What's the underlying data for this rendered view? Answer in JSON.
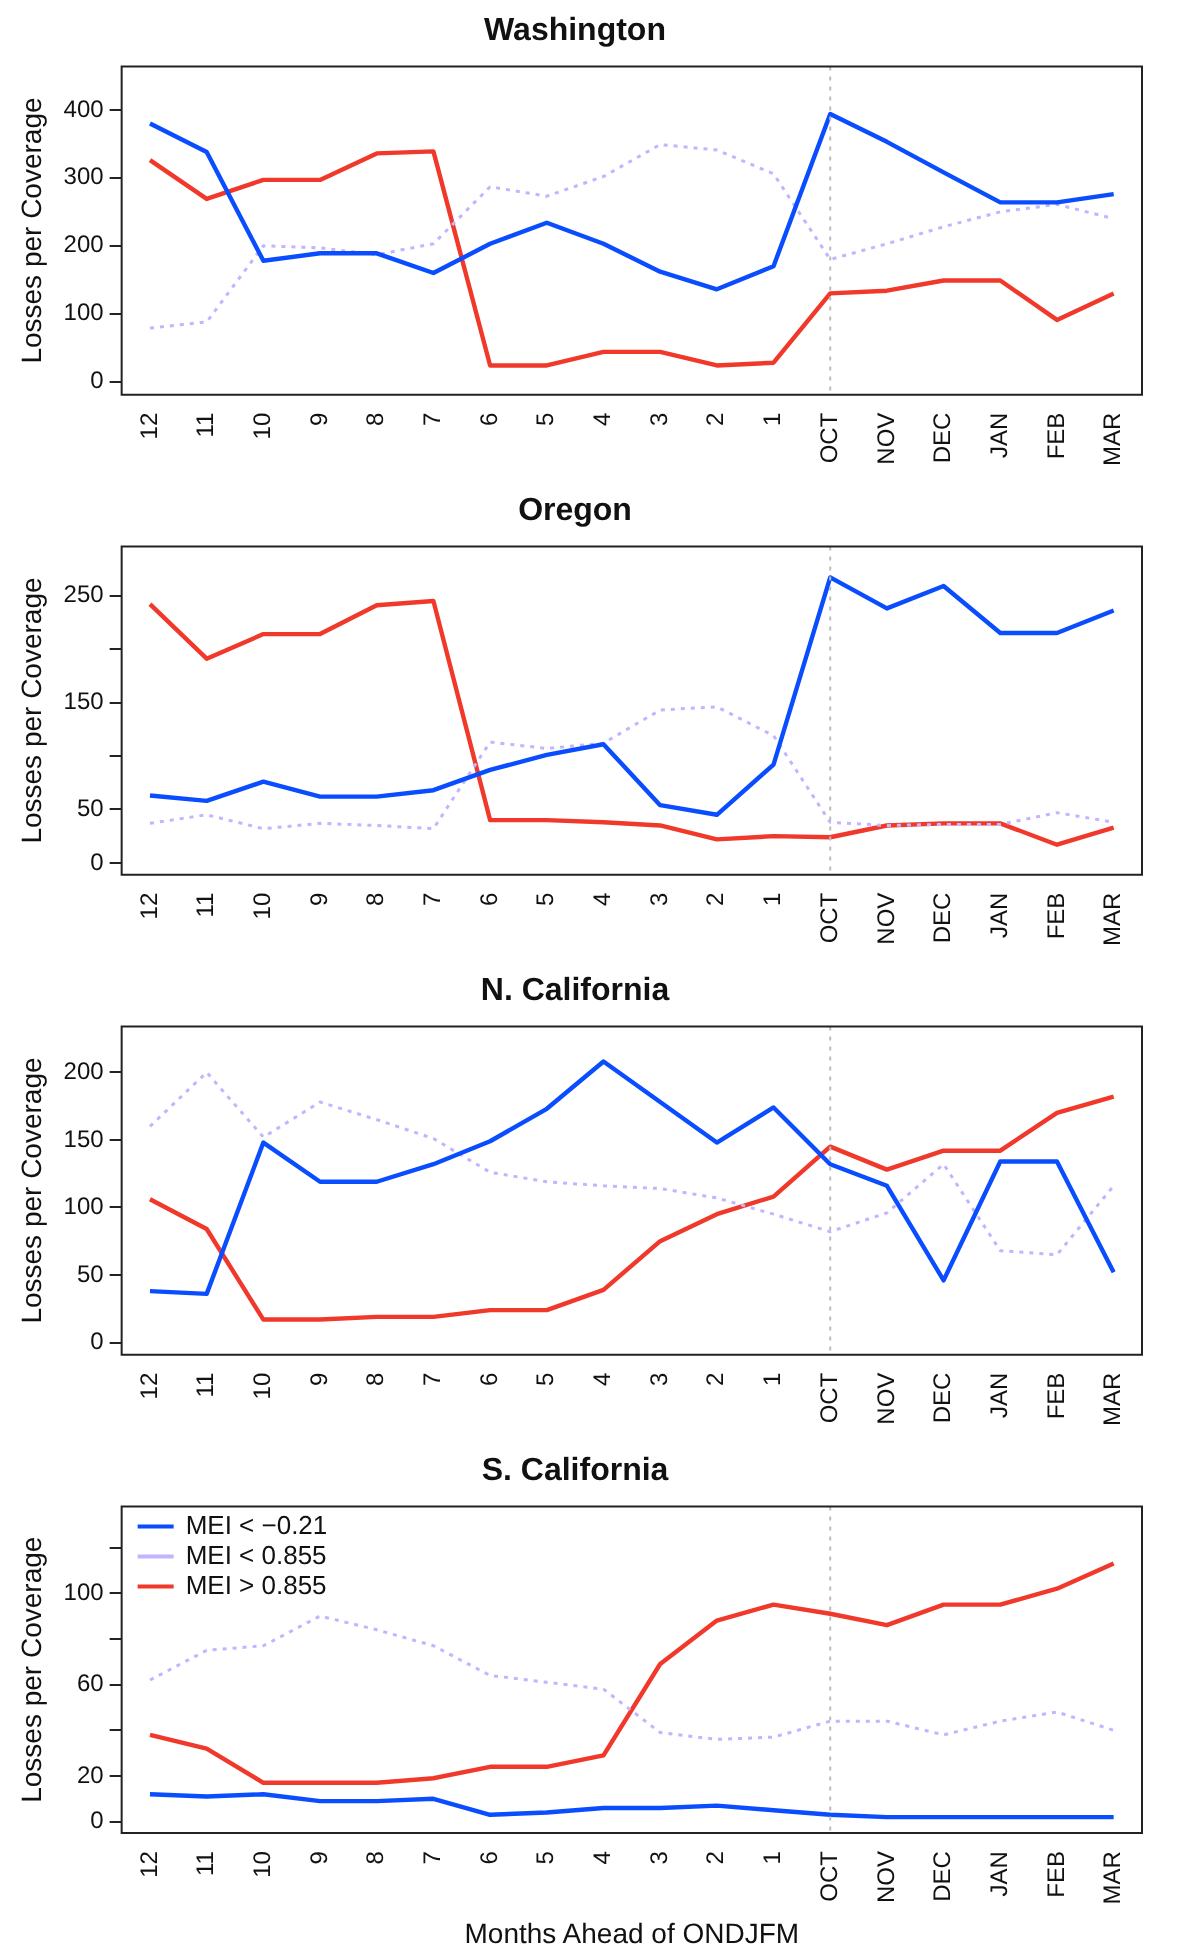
{
  "chart_data": [
    {
      "type": "line",
      "title": "Washington",
      "ylabel": "Losses per Coverage",
      "categories": [
        "12",
        "11",
        "10",
        "9",
        "8",
        "7",
        "6",
        "5",
        "4",
        "3",
        "2",
        "1",
        "OCT",
        "NOV",
        "DEC",
        "JAN",
        "FEB",
        "MAR"
      ],
      "ylim": [
        -19,
        464
      ],
      "yticks": [
        0,
        100,
        200,
        300,
        400
      ],
      "grid": false,
      "legend": false,
      "marker": "none",
      "ref_lines": [
        {
          "axis": "x",
          "value": "OCT",
          "color": "#bbbbbb",
          "line_style": "dotted"
        }
      ],
      "series": [
        {
          "color": "#0a4dff",
          "line_style": "solid",
          "values": [
            380,
            338,
            178,
            189,
            189,
            160,
            203,
            234,
            203,
            162,
            136,
            170,
            394,
            353,
            308,
            264,
            264,
            276
          ]
        },
        {
          "color": "#c4b4ff",
          "line_style": "dotted",
          "values": [
            79,
            88,
            200,
            197,
            187,
            203,
            287,
            273,
            302,
            349,
            341,
            306,
            180,
            203,
            228,
            250,
            261,
            240
          ]
        },
        {
          "color": "#f0392b",
          "line_style": "solid",
          "values": [
            326,
            269,
            297,
            297,
            336,
            339,
            24,
            24,
            44,
            44,
            24,
            28,
            130,
            134,
            149,
            149,
            91,
            130
          ]
        }
      ]
    },
    {
      "type": "line",
      "title": "Oregon",
      "ylabel": "Losses per Coverage",
      "categories": [
        "12",
        "11",
        "10",
        "9",
        "8",
        "7",
        "6",
        "5",
        "4",
        "3",
        "2",
        "1",
        "OCT",
        "NOV",
        "DEC",
        "JAN",
        "FEB",
        "MAR"
      ],
      "ylim": [
        -11,
        296
      ],
      "yticks": [
        0,
        50,
        {
          "value": 100,
          "label": null
        },
        150,
        {
          "value": 200,
          "label": null
        },
        250
      ],
      "grid": false,
      "legend": false,
      "marker": "none",
      "ref_lines": [
        {
          "axis": "x",
          "value": "OCT",
          "color": "#bbbbbb",
          "line_style": "dotted"
        }
      ],
      "series": [
        {
          "color": "#0a4dff",
          "line_style": "solid",
          "values": [
            63,
            58,
            76,
            62,
            62,
            68,
            87,
            101,
            111,
            54,
            45,
            92,
            267,
            238,
            259,
            215,
            215,
            236
          ]
        },
        {
          "color": "#c4b4ff",
          "line_style": "dotted",
          "values": [
            37,
            45,
            32,
            37,
            35,
            32,
            113,
            107,
            112,
            143,
            146,
            119,
            38,
            35,
            36,
            36,
            47,
            38
          ]
        },
        {
          "color": "#f0392b",
          "line_style": "solid",
          "values": [
            242,
            191,
            214,
            214,
            241,
            245,
            40,
            40,
            38,
            35,
            22,
            25,
            24,
            35,
            37,
            37,
            17,
            33
          ]
        }
      ]
    },
    {
      "type": "line",
      "title": "N. California",
      "ylabel": "Losses per Coverage",
      "categories": [
        "12",
        "11",
        "10",
        "9",
        "8",
        "7",
        "6",
        "5",
        "4",
        "3",
        "2",
        "1",
        "OCT",
        "NOV",
        "DEC",
        "JAN",
        "FEB",
        "MAR"
      ],
      "ylim": [
        -9,
        234
      ],
      "yticks": [
        0,
        50,
        100,
        150,
        200
      ],
      "grid": false,
      "legend": false,
      "marker": "none",
      "ref_lines": [
        {
          "axis": "x",
          "value": "OCT",
          "color": "#bbbbbb",
          "line_style": "dotted"
        }
      ],
      "series": [
        {
          "color": "#0a4dff",
          "line_style": "solid",
          "values": [
            38,
            36,
            148,
            119,
            119,
            132,
            149,
            173,
            208,
            178,
            148,
            174,
            132,
            116,
            46,
            134,
            134,
            52
          ]
        },
        {
          "color": "#c4b4ff",
          "line_style": "dotted",
          "values": [
            160,
            200,
            152,
            178,
            165,
            151,
            126,
            119,
            116,
            114,
            107,
            95,
            82,
            96,
            132,
            68,
            65,
            116
          ]
        },
        {
          "color": "#f0392b",
          "line_style": "solid",
          "values": [
            106,
            84,
            17,
            17,
            19,
            19,
            24,
            24,
            39,
            75,
            95,
            108,
            145,
            128,
            142,
            142,
            170,
            182
          ]
        }
      ]
    },
    {
      "type": "line",
      "title": "S. California",
      "xlabel": "Months Ahead of ONDJFM",
      "ylabel": "Losses per Coverage",
      "categories": [
        "12",
        "11",
        "10",
        "9",
        "8",
        "7",
        "6",
        "5",
        "4",
        "3",
        "2",
        "1",
        "OCT",
        "NOV",
        "DEC",
        "JAN",
        "FEB",
        "MAR"
      ],
      "ylim": [
        -5,
        138
      ],
      "yticks": [
        0,
        20,
        {
          "value": 40,
          "label": null
        },
        60,
        {
          "value": 80,
          "label": null
        },
        100,
        {
          "value": 120,
          "label": null
        }
      ],
      "grid": false,
      "legend": "top left",
      "marker": "none",
      "ref_lines": [
        {
          "axis": "x",
          "value": "OCT",
          "color": "#bbbbbb",
          "line_style": "dotted"
        }
      ],
      "series": [
        {
          "name": "MEI < −0.21",
          "color": "#0a4dff",
          "line_style": "solid",
          "values": [
            12,
            11,
            12,
            9,
            9,
            10,
            3,
            4,
            6,
            6,
            7,
            5,
            3,
            2,
            2,
            2,
            2,
            2
          ]
        },
        {
          "name": "MEI < 0.855",
          "color": "#c4b4ff",
          "line_style": "dotted",
          "values": [
            62,
            75,
            77,
            90,
            84,
            77,
            64,
            61,
            58,
            39,
            36,
            37,
            44,
            44,
            38,
            44,
            48,
            40
          ]
        },
        {
          "name": "MEI > 0.855",
          "color": "#f0392b",
          "line_style": "solid",
          "values": [
            38,
            32,
            17,
            17,
            17,
            19,
            24,
            24,
            29,
            69,
            88,
            95,
            91,
            86,
            95,
            95,
            102,
            113
          ]
        }
      ]
    }
  ]
}
